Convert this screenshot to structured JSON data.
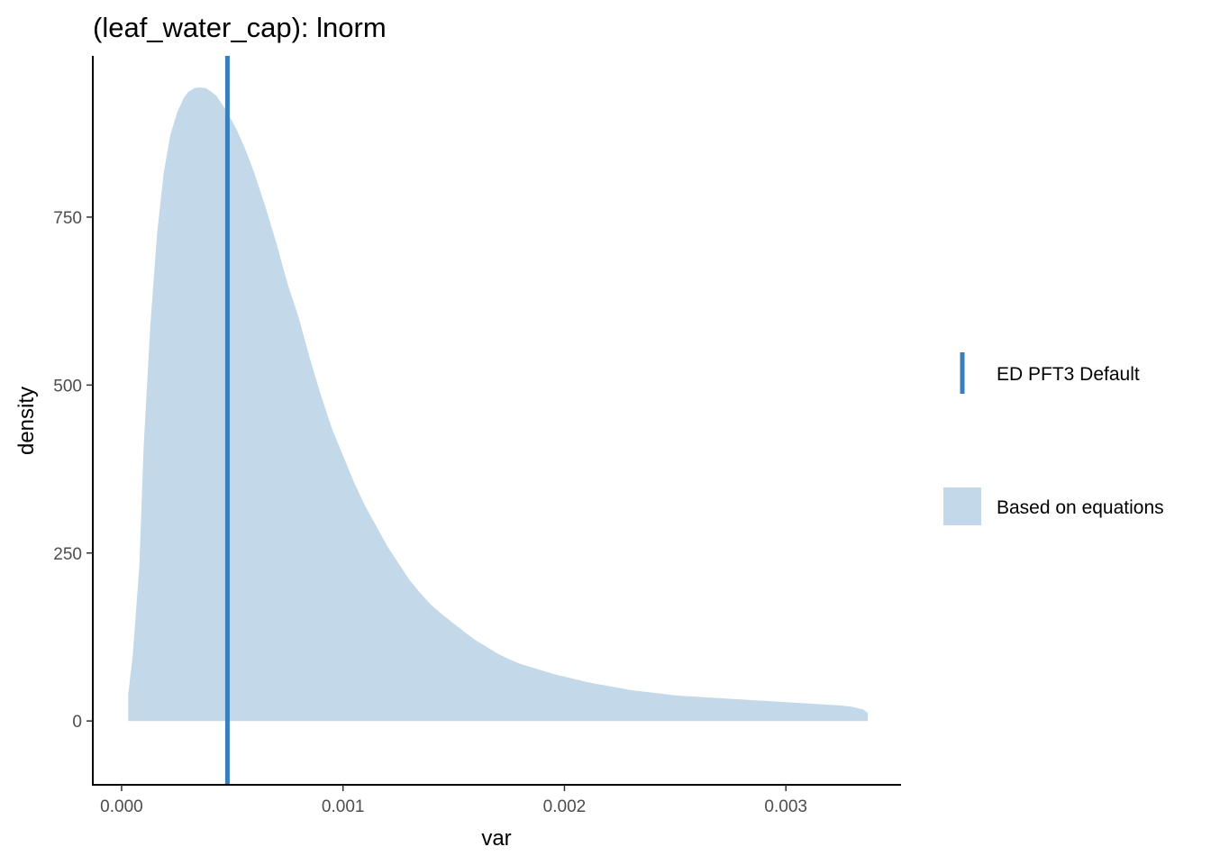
{
  "chart_data": {
    "type": "area",
    "title": "(leaf_water_cap): lnorm",
    "xlabel": "var",
    "ylabel": "density",
    "xlim": [
      -0.00013,
      0.00352
    ],
    "ylim": [
      -95,
      990
    ],
    "x_ticks": [
      0.0,
      0.001,
      0.002,
      0.003
    ],
    "x_tick_labels": [
      "0.000",
      "0.001",
      "0.002",
      "0.003"
    ],
    "y_ticks": [
      0,
      250,
      500,
      750
    ],
    "y_tick_labels": [
      "0",
      "250",
      "500",
      "750"
    ],
    "grid": false,
    "legend_position": "right",
    "colors": {
      "density_fill": "#c3d8e8",
      "default_line": "#3a7fbc",
      "axis": "#000000"
    },
    "series": [
      {
        "name": "Based on equations",
        "type": "area",
        "x": [
          3e-05,
          5e-05,
          8e-05,
          0.0001,
          0.00013,
          0.00016,
          0.00019,
          0.00022,
          0.00025,
          0.00028,
          0.0003,
          0.00033,
          0.00035,
          0.00038,
          0.0004,
          0.00043,
          0.00045,
          0.00048,
          0.00052,
          0.00056,
          0.0006,
          0.00065,
          0.0007,
          0.00075,
          0.0008,
          0.00085,
          0.0009,
          0.00095,
          0.001,
          0.00105,
          0.0011,
          0.00115,
          0.0012,
          0.00125,
          0.0013,
          0.00135,
          0.0014,
          0.00145,
          0.0015,
          0.00155,
          0.0016,
          0.00165,
          0.0017,
          0.00175,
          0.0018,
          0.00185,
          0.0019,
          0.00195,
          0.002,
          0.00205,
          0.0021,
          0.00215,
          0.0022,
          0.00225,
          0.0023,
          0.00235,
          0.0024,
          0.00245,
          0.0025,
          0.00255,
          0.0026,
          0.00265,
          0.0027,
          0.00275,
          0.0028,
          0.00285,
          0.0029,
          0.00295,
          0.003,
          0.00305,
          0.0031,
          0.00315,
          0.0032,
          0.00325,
          0.0033,
          0.00335,
          0.00337
        ],
        "y": [
          40,
          95,
          230,
          410,
          590,
          725,
          815,
          872,
          905,
          927,
          936,
          942,
          943,
          942,
          938,
          930,
          920,
          905,
          880,
          850,
          815,
          765,
          710,
          650,
          600,
          540,
          485,
          435,
          395,
          355,
          320,
          290,
          260,
          235,
          210,
          190,
          172,
          158,
          145,
          132,
          120,
          110,
          100,
          92,
          85,
          80,
          75,
          70,
          66,
          62,
          58,
          55,
          52,
          49,
          46,
          44,
          42,
          40,
          38,
          37,
          36,
          35,
          34,
          33,
          32,
          31,
          30,
          29,
          28,
          27,
          26,
          25,
          24,
          23,
          21,
          17,
          12
        ]
      }
    ],
    "reference_lines": [
      {
        "name": "ED PFT3 Default",
        "x": 0.000478
      }
    ]
  },
  "legend": {
    "items": [
      {
        "label": "ED PFT3 Default"
      },
      {
        "label": "Based on equations"
      }
    ]
  }
}
